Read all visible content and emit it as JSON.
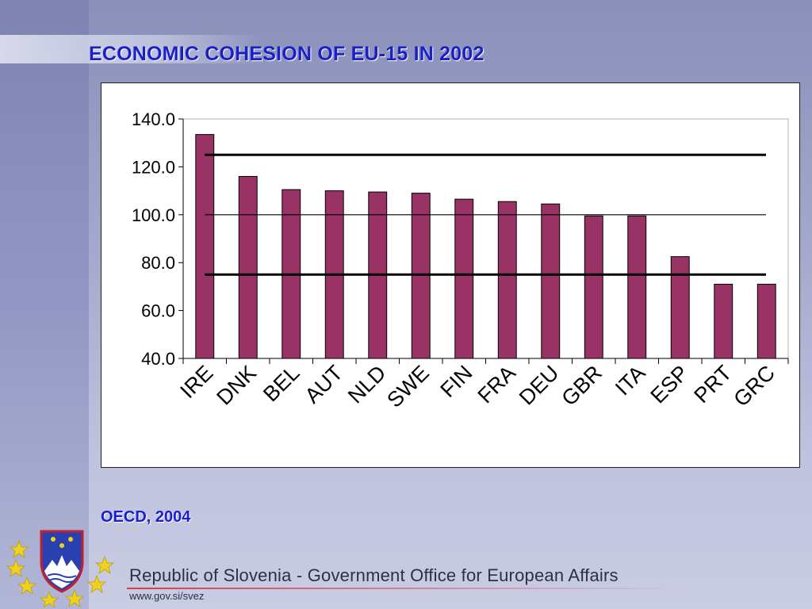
{
  "slide": {
    "title": "ECONOMIC COHESION OF EU-15 IN 2002",
    "source": "OECD, 2004",
    "footer_org": "Republic of Slovenia - Government Office for European Affairs",
    "footer_url": "www.gov.si/svez"
  },
  "colors": {
    "bar": "#993366",
    "title": "#1a1fc8",
    "reference_line": "#000000"
  },
  "icons": {
    "logo": "slovenia-coat-of-arms-with-eu-stars"
  },
  "chart_data": {
    "type": "bar",
    "title": "",
    "xlabel": "",
    "ylabel": "",
    "categories": [
      "IRE",
      "DNK",
      "BEL",
      "AUT",
      "NLD",
      "SWE",
      "FIN",
      "FRA",
      "DEU",
      "GBR",
      "ITA",
      "ESP",
      "PRT",
      "GRC"
    ],
    "values": [
      133.5,
      116.0,
      110.5,
      110.0,
      109.5,
      109.0,
      106.5,
      105.5,
      104.5,
      99.5,
      99.5,
      82.5,
      71.0,
      71.0
    ],
    "ylim": [
      40,
      140
    ],
    "yticks": [
      "140.0",
      "120.0",
      "100.0",
      "80.0",
      "60.0",
      "40.0"
    ],
    "ytick_values": [
      140,
      120,
      100,
      80,
      60,
      40
    ],
    "reference_lines": [
      125,
      100,
      75
    ],
    "grid": false,
    "legend": "none"
  }
}
